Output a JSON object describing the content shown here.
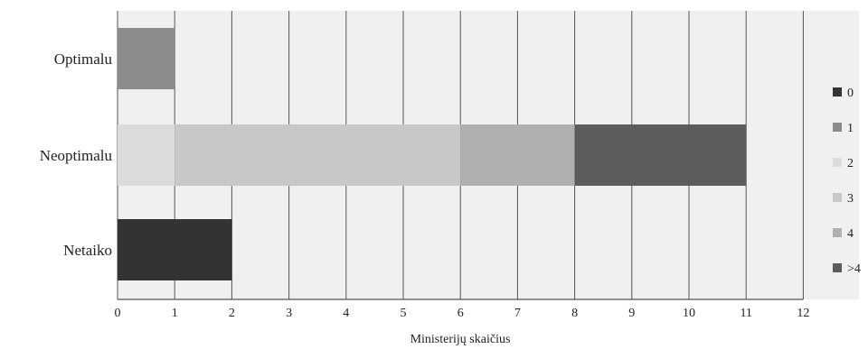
{
  "chart_data": {
    "type": "bar",
    "orientation": "horizontal",
    "stacked": true,
    "title": "",
    "xlabel": "Ministerijų skaičius",
    "ylabel": "",
    "xlim": [
      0,
      12
    ],
    "x_ticks": [
      "0",
      "1",
      "2",
      "3",
      "4",
      "5",
      "6",
      "7",
      "8",
      "9",
      "10",
      "11",
      "12"
    ],
    "grid": "vertical",
    "legend_position": "right",
    "categories": [
      "Optimalu",
      "Neoptimalu",
      "Netaiko"
    ],
    "series": [
      {
        "name": "0",
        "color": "#333333",
        "values": [
          0,
          0,
          2
        ]
      },
      {
        "name": "1",
        "color": "#8c8c8c",
        "values": [
          1,
          0,
          0
        ]
      },
      {
        "name": "2",
        "color": "#dcdcdc",
        "values": [
          0,
          1,
          0
        ]
      },
      {
        "name": "3",
        "color": "#c8c8c8",
        "values": [
          0,
          5,
          0
        ]
      },
      {
        "name": "4",
        "color": "#b0b0b0",
        "values": [
          0,
          2,
          0
        ]
      },
      {
        "name": ">4",
        "color": "#5c5c5c",
        "values": [
          0,
          3,
          0
        ]
      }
    ],
    "colors": {
      "plot_background": "#f0f0f0",
      "gridline": "#555555"
    }
  }
}
